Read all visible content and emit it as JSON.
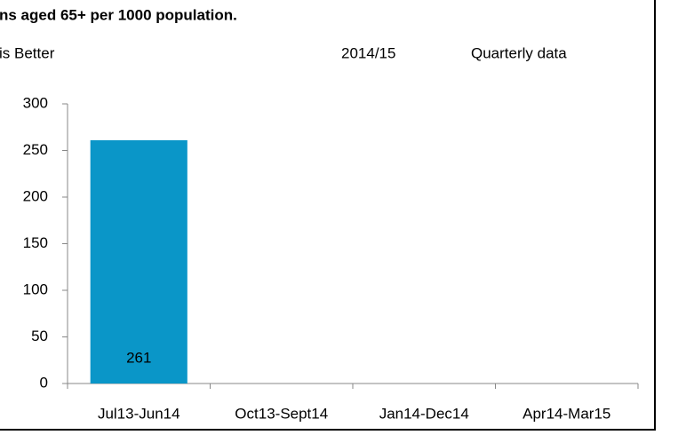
{
  "chart_data": {
    "type": "bar",
    "title": "ns aged 65+ per 1000 population.",
    "subtitle": [
      "is Better",
      "2014/15",
      "Quarterly data"
    ],
    "categories": [
      "Jul13-Jun14",
      "Oct13-Sept14",
      "Jan14-Dec14",
      "Apr14-Mar15"
    ],
    "values": [
      261,
      null,
      null,
      null
    ],
    "color": "#0a96c8",
    "ylim": [
      0,
      300
    ],
    "yticks": [
      0,
      50,
      100,
      150,
      200,
      250,
      300
    ],
    "grid": false
  }
}
